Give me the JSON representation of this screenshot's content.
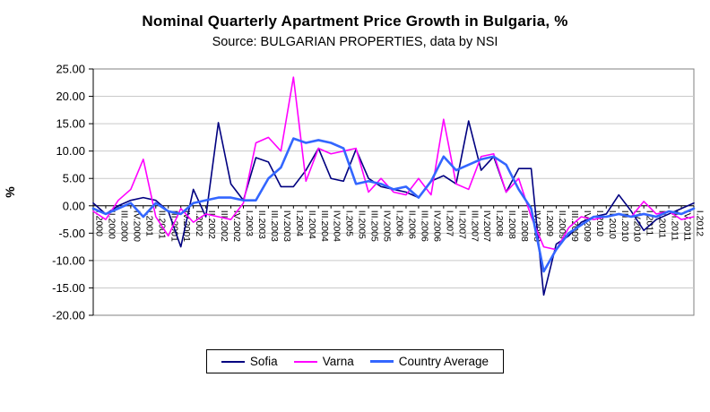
{
  "chart": {
    "title": "Nominal Quarterly Apartment Price Growth in Bulgaria, %",
    "subtitle": "Source: BULGARIAN PROPERTIES, data by NSI"
  },
  "chart_data": {
    "type": "line",
    "title": "Nominal Quarterly Apartment Price Growth in Bulgaria, %",
    "subtitle": "Source: BULGARIAN PROPERTIES, data by NSI",
    "xlabel": "",
    "ylabel": "%",
    "ylim": [
      -20,
      25
    ],
    "ytick_step": 5,
    "ytick_format_decimals": 2,
    "grid": true,
    "legend_position": "bottom",
    "x_labels_rotated": true,
    "x_labels_attached_to_zero_axis": true,
    "categories": [
      "I.2000",
      "II.2000",
      "III.2000",
      "IV.2000",
      "I.2001",
      "II.2001",
      "III.2001",
      "IV.2001",
      "I.2002",
      "II.2002",
      "III.2002",
      "IV.2002",
      "I.2003",
      "II.2003",
      "III.2003",
      "IV.2003",
      "I.2004",
      "II.2004",
      "III.2004",
      "IV.2004",
      "I.2005",
      "II.2005",
      "III.2005",
      "IV.2005",
      "I.2006",
      "II.2006",
      "III.2006",
      "IV.2006",
      "I.2007",
      "II.2007",
      "III.2007",
      "IV.2007",
      "I.2008",
      "II.2008",
      "III.2008",
      "IV.2008",
      "I.2009",
      "II.2009",
      "III.2009",
      "IV.2009",
      "I.2010",
      "II.2010",
      "III.2010",
      "IV.2010",
      "I.2011",
      "II.2011",
      "III.2011",
      "IV.2011",
      "I.2012"
    ],
    "series": [
      {
        "name": "Sofia",
        "color": "#000080",
        "line_width": 1.6,
        "values": [
          0.5,
          -1.5,
          0.0,
          1.0,
          1.5,
          1.0,
          -1.0,
          -7.5,
          3.0,
          -2.0,
          15.2,
          4.0,
          1.0,
          8.8,
          8.0,
          3.5,
          3.5,
          6.5,
          10.5,
          5.0,
          4.5,
          10.3,
          5.0,
          3.5,
          3.0,
          2.5,
          1.5,
          4.5,
          5.5,
          4.0,
          15.5,
          6.5,
          9.0,
          2.5,
          6.8,
          6.8,
          -16.3,
          -7.0,
          -5.5,
          -3.0,
          -2.0,
          -1.5,
          2.0,
          -1.0,
          -4.5,
          -2.5,
          -1.5,
          -0.5,
          0.5
        ]
      },
      {
        "name": "Varna",
        "color": "#FF00FF",
        "line_width": 1.6,
        "values": [
          -1.0,
          -2.5,
          1.0,
          3.0,
          8.5,
          -2.0,
          -5.5,
          -0.5,
          -3.0,
          -1.5,
          -2.0,
          -2.5,
          0.5,
          11.5,
          12.5,
          10.0,
          23.5,
          4.5,
          10.5,
          9.5,
          10.0,
          10.5,
          2.5,
          5.0,
          2.5,
          2.0,
          5.0,
          2.0,
          15.8,
          4.0,
          3.0,
          9.0,
          9.5,
          2.5,
          5.0,
          -2.0,
          -7.5,
          -8.0,
          -4.0,
          -2.0,
          -2.5,
          -2.0,
          -1.5,
          -2.0,
          0.8,
          -1.5,
          -1.0,
          -2.5,
          -2.0
        ]
      },
      {
        "name": "Country Average",
        "color": "#3366FF",
        "line_width": 2.6,
        "values": [
          -0.5,
          -1.5,
          -0.5,
          0.5,
          -2.0,
          0.5,
          -1.0,
          -1.5,
          0.5,
          1.0,
          1.5,
          1.5,
          1.0,
          1.0,
          5.0,
          7.0,
          12.3,
          11.5,
          12.0,
          11.5,
          10.5,
          4.0,
          4.5,
          4.0,
          3.0,
          3.5,
          1.5,
          4.5,
          9.0,
          6.5,
          7.5,
          8.5,
          9.0,
          7.5,
          3.0,
          -0.5,
          -12.0,
          -8.0,
          -5.0,
          -3.5,
          -2.0,
          -2.0,
          -1.5,
          -2.0,
          -1.5,
          -2.0,
          -1.0,
          -1.5,
          -0.5
        ]
      }
    ]
  }
}
